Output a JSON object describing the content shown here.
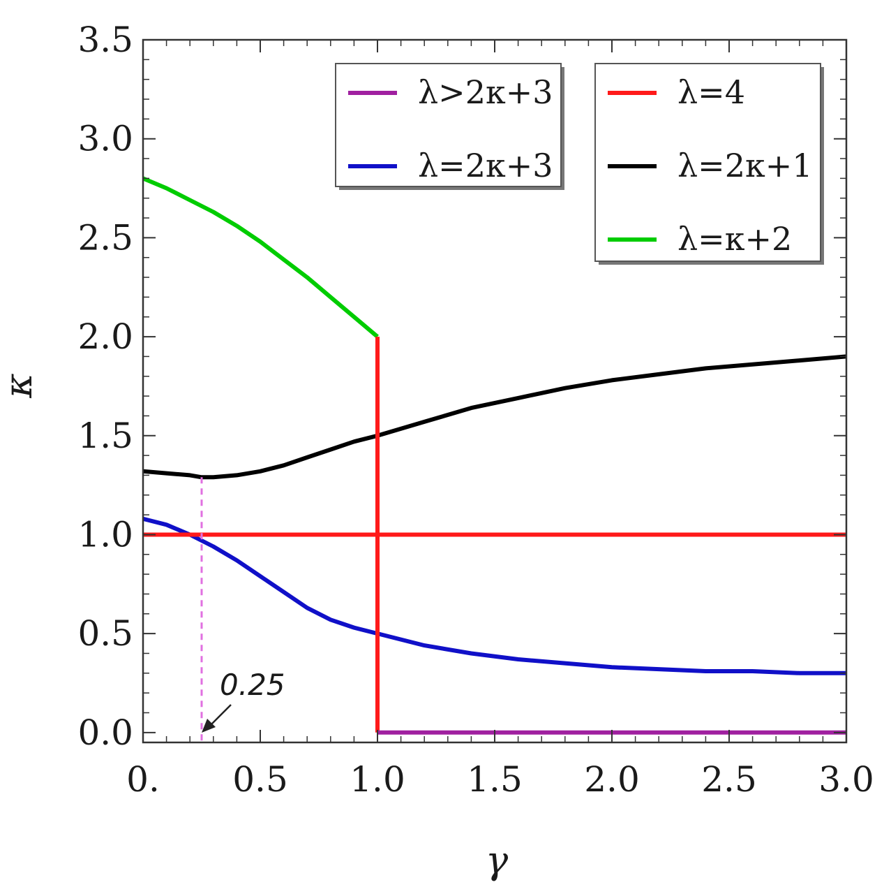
{
  "chart_data": {
    "type": "line",
    "xlabel": "γ",
    "ylabel": "κ",
    "xlim": [
      0,
      3.0
    ],
    "ylim": [
      -0.05,
      3.5
    ],
    "x_ticks": [
      0,
      0.5,
      1.0,
      1.5,
      2.0,
      2.5,
      3.0
    ],
    "x_tick_labels": [
      "0.",
      "0.5",
      "1.0",
      "1.5",
      "2.0",
      "2.5",
      "3.0"
    ],
    "y_ticks": [
      0,
      0.5,
      1.0,
      1.5,
      2.0,
      2.5,
      3.0,
      3.5
    ],
    "y_tick_labels": [
      "0.0",
      "0.5",
      "1.0",
      "1.5",
      "2.0",
      "2.5",
      "3.0",
      "3.5"
    ],
    "grid": false,
    "annotation": {
      "text": "0.25",
      "x": 0.25,
      "y": 0
    },
    "legends": [
      {
        "placement": "top-center",
        "entries": [
          {
            "label": "λ>2κ+3",
            "color": "#a020a0"
          },
          {
            "label": "λ=2κ+3",
            "color": "#1010c8"
          }
        ]
      },
      {
        "placement": "top-right",
        "entries": [
          {
            "label": "λ=4",
            "color": "#ff1a1a"
          },
          {
            "label": "λ=2κ+1",
            "color": "#000000"
          },
          {
            "label": "λ=κ+2",
            "color": "#00cc00"
          }
        ]
      }
    ],
    "series": [
      {
        "name": "λ=κ+2",
        "color": "#00cc00",
        "x": [
          0,
          0.1,
          0.2,
          0.3,
          0.4,
          0.5,
          0.6,
          0.7,
          0.8,
          0.9,
          1.0
        ],
        "y": [
          2.8,
          2.75,
          2.69,
          2.63,
          2.56,
          2.48,
          2.39,
          2.3,
          2.2,
          2.1,
          2.0
        ]
      },
      {
        "name": "λ=2κ+1",
        "color": "#000000",
        "x": [
          0,
          0.1,
          0.2,
          0.25,
          0.3,
          0.4,
          0.5,
          0.6,
          0.7,
          0.8,
          0.9,
          1.0,
          1.2,
          1.4,
          1.6,
          1.8,
          2.0,
          2.2,
          2.4,
          2.6,
          2.8,
          3.0
        ],
        "y": [
          1.32,
          1.31,
          1.3,
          1.29,
          1.29,
          1.3,
          1.32,
          1.35,
          1.39,
          1.43,
          1.47,
          1.5,
          1.57,
          1.64,
          1.69,
          1.74,
          1.78,
          1.81,
          1.84,
          1.86,
          1.88,
          1.9
        ]
      },
      {
        "name": "λ=2κ+3",
        "color": "#1010c8",
        "x": [
          0,
          0.1,
          0.2,
          0.25,
          0.3,
          0.4,
          0.5,
          0.6,
          0.7,
          0.8,
          0.9,
          1.0,
          1.2,
          1.4,
          1.6,
          1.8,
          2.0,
          2.2,
          2.4,
          2.6,
          2.8,
          3.0
        ],
        "y": [
          1.08,
          1.05,
          1.0,
          0.97,
          0.94,
          0.87,
          0.79,
          0.71,
          0.63,
          0.57,
          0.53,
          0.5,
          0.44,
          0.4,
          0.37,
          0.35,
          0.33,
          0.32,
          0.31,
          0.31,
          0.3,
          0.3
        ]
      },
      {
        "name": "λ=4",
        "color": "#ff1a1a",
        "segments": [
          {
            "x": [
              0,
              3.0
            ],
            "y": [
              1.0,
              1.0
            ]
          },
          {
            "x": [
              1.0,
              1.0
            ],
            "y": [
              2.0,
              0.0
            ]
          }
        ]
      },
      {
        "name": "λ>2κ+3",
        "color": "#a020a0",
        "x": [
          1.0,
          3.0
        ],
        "y": [
          0.0,
          0.0
        ]
      },
      {
        "name": "",
        "color": "#e070e0",
        "style": "dashed",
        "x": [
          0.25,
          0.25
        ],
        "y": [
          1.29,
          -0.05
        ]
      }
    ]
  }
}
